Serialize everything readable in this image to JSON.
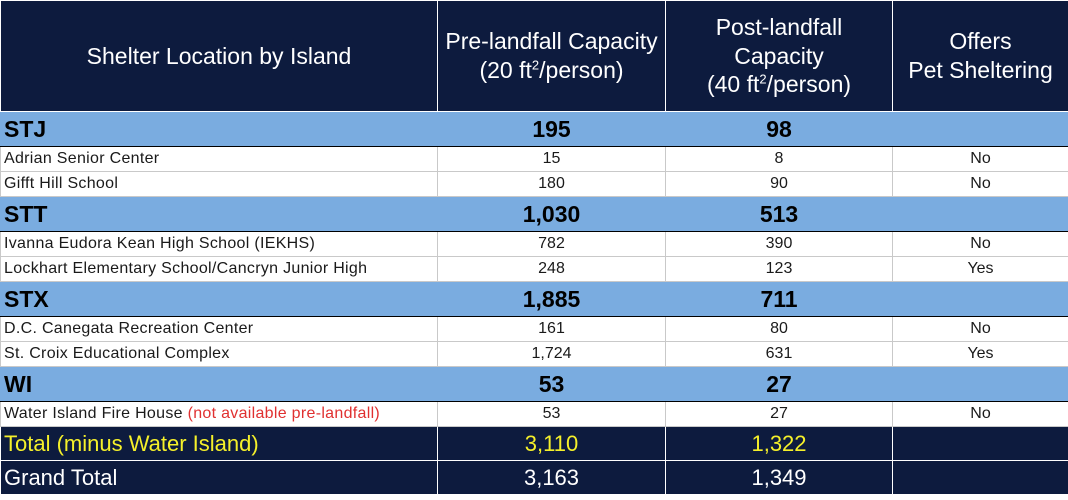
{
  "header": {
    "col1": "Shelter Location by Island",
    "col2_line1": "Pre-landfall Capacity",
    "col2_line2_pre": "(20 ft",
    "col2_sup": "2",
    "col2_line2_post": "/person)",
    "col3_line1": "Post-landfall",
    "col3_line2": "Capacity",
    "col3_line3_pre": "(40 ft",
    "col3_sup": "2",
    "col3_line3_post": "/person)",
    "col4_line1": "Offers",
    "col4_line2": "Pet Sheltering"
  },
  "islands": [
    {
      "name": "STJ",
      "pre": "195",
      "post": "98",
      "shelters": [
        {
          "name": "Adrian Senior Center",
          "note": "",
          "pre": "15",
          "post": "8",
          "pets": "No"
        },
        {
          "name": "Gifft Hill School",
          "note": "",
          "pre": "180",
          "post": "90",
          "pets": "No"
        }
      ]
    },
    {
      "name": "STT",
      "pre": "1,030",
      "post": "513",
      "shelters": [
        {
          "name": "Ivanna Eudora Kean High School (IEKHS)",
          "note": "",
          "pre": "782",
          "post": "390",
          "pets": "No"
        },
        {
          "name": "Lockhart Elementary School/Cancryn Junior High",
          "note": "",
          "pre": "248",
          "post": "123",
          "pets": "Yes"
        }
      ]
    },
    {
      "name": "STX",
      "pre": "1,885",
      "post": "711",
      "shelters": [
        {
          "name": "D.C. Canegata Recreation Center",
          "note": "",
          "pre": "161",
          "post": "80",
          "pets": "No"
        },
        {
          "name": "St. Croix Educational Complex",
          "note": "",
          "pre": "1,724",
          "post": "631",
          "pets": "Yes"
        }
      ]
    },
    {
      "name": "WI",
      "pre": "53",
      "post": "27",
      "shelters": [
        {
          "name": "Water Island Fire House ",
          "note": "(not available pre-landfall)",
          "pre": "53",
          "post": "27",
          "pets": "No"
        }
      ]
    }
  ],
  "totals": {
    "minus_label": "Total (minus Water Island)",
    "minus_pre": "3,110",
    "minus_post": "1,322",
    "grand_label": "Grand Total",
    "grand_pre": "3,163",
    "grand_post": "1,349"
  },
  "colors": {
    "header_bg": "#0d1b3e",
    "group_bg": "#7aace0",
    "total_text": "#f5f02a",
    "note_text": "#e03030"
  }
}
